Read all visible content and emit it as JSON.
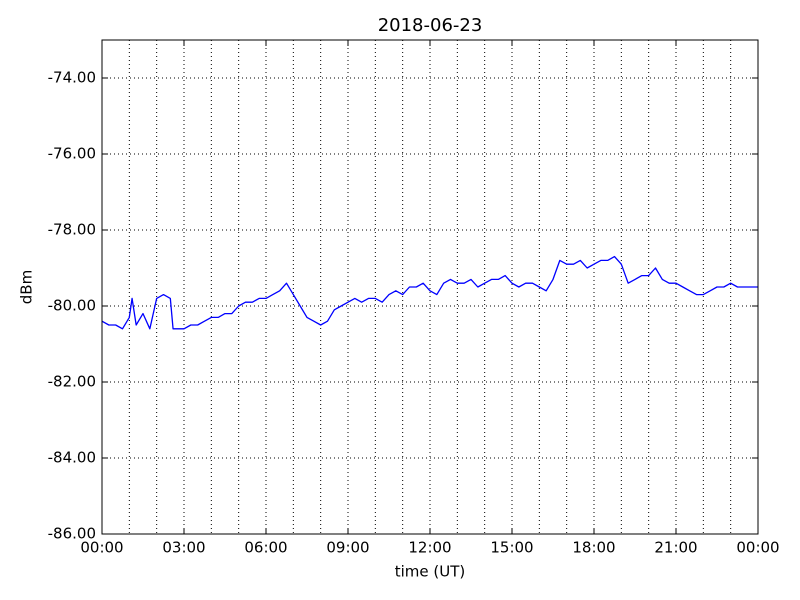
{
  "chart_data": {
    "type": "line",
    "title": "2018-06-23",
    "x_label": "time (UT)",
    "y_label": "dBm",
    "color": "#0000ff",
    "grid": true,
    "xlim": [
      0,
      24
    ],
    "ylim": [
      -86,
      -73
    ],
    "xticks": [
      {
        "value": 0,
        "label": "00:00"
      },
      {
        "value": 3,
        "label": "03:00"
      },
      {
        "value": 6,
        "label": "06:00"
      },
      {
        "value": 9,
        "label": "09:00"
      },
      {
        "value": 12,
        "label": "12:00"
      },
      {
        "value": 15,
        "label": "15:00"
      },
      {
        "value": 18,
        "label": "18:00"
      },
      {
        "value": 21,
        "label": "21:00"
      },
      {
        "value": 24,
        "label": "00:00"
      }
    ],
    "x_minor_ticks": [
      1,
      2,
      4,
      5,
      7,
      8,
      10,
      11,
      13,
      14,
      16,
      17,
      19,
      20,
      22,
      23
    ],
    "yticks": [
      {
        "value": -74,
        "label": "-74.00"
      },
      {
        "value": -76,
        "label": "-76.00"
      },
      {
        "value": -78,
        "label": "-78.00"
      },
      {
        "value": -80,
        "label": "-80.00"
      },
      {
        "value": -82,
        "label": "-82.00"
      },
      {
        "value": -84,
        "label": "-84.00"
      },
      {
        "value": -86,
        "label": "-86.00"
      }
    ],
    "x": [
      0,
      0.25,
      0.5,
      0.75,
      1.0,
      1.1,
      1.25,
      1.5,
      1.75,
      2.0,
      2.25,
      2.5,
      2.6,
      2.75,
      3.0,
      3.25,
      3.5,
      3.75,
      4.0,
      4.25,
      4.5,
      4.75,
      5.0,
      5.25,
      5.5,
      5.75,
      6.0,
      6.25,
      6.5,
      6.75,
      7.0,
      7.25,
      7.5,
      7.75,
      8.0,
      8.25,
      8.5,
      8.75,
      9.0,
      9.25,
      9.5,
      9.75,
      10.0,
      10.25,
      10.5,
      10.75,
      11.0,
      11.25,
      11.5,
      11.75,
      12.0,
      12.25,
      12.5,
      12.75,
      13.0,
      13.25,
      13.5,
      13.75,
      14.0,
      14.25,
      14.5,
      14.75,
      15.0,
      15.25,
      15.5,
      15.75,
      16.0,
      16.25,
      16.5,
      16.75,
      17.0,
      17.25,
      17.5,
      17.75,
      18.0,
      18.25,
      18.5,
      18.75,
      19.0,
      19.25,
      19.5,
      19.75,
      20.0,
      20.25,
      20.5,
      20.75,
      21.0,
      21.25,
      21.5,
      21.75,
      22.0,
      22.25,
      22.5,
      22.75,
      23.0,
      23.25,
      23.5,
      23.75,
      24.0
    ],
    "values": [
      -80.4,
      -80.5,
      -80.5,
      -80.6,
      -80.3,
      -79.8,
      -80.5,
      -80.2,
      -80.6,
      -79.8,
      -79.7,
      -79.8,
      -80.6,
      -80.6,
      -80.6,
      -80.5,
      -80.5,
      -80.4,
      -80.3,
      -80.3,
      -80.2,
      -80.2,
      -80.0,
      -79.9,
      -79.9,
      -79.8,
      -79.8,
      -79.7,
      -79.6,
      -79.4,
      -79.7,
      -80.0,
      -80.3,
      -80.4,
      -80.5,
      -80.4,
      -80.1,
      -80.0,
      -79.9,
      -79.8,
      -79.9,
      -79.8,
      -79.8,
      -79.9,
      -79.7,
      -79.6,
      -79.7,
      -79.5,
      -79.5,
      -79.4,
      -79.6,
      -79.7,
      -79.4,
      -79.3,
      -79.4,
      -79.4,
      -79.3,
      -79.5,
      -79.4,
      -79.3,
      -79.3,
      -79.2,
      -79.4,
      -79.5,
      -79.4,
      -79.4,
      -79.5,
      -79.6,
      -79.3,
      -78.8,
      -78.9,
      -78.9,
      -78.8,
      -79.0,
      -78.9,
      -78.8,
      -78.8,
      -78.7,
      -78.9,
      -79.4,
      -79.3,
      -79.2,
      -79.2,
      -79.0,
      -79.3,
      -79.4,
      -79.4,
      -79.5,
      -79.6,
      -79.7,
      -79.7,
      -79.6,
      -79.5,
      -79.5,
      -79.4,
      -79.5,
      -79.5,
      -79.5,
      -79.5
    ]
  }
}
